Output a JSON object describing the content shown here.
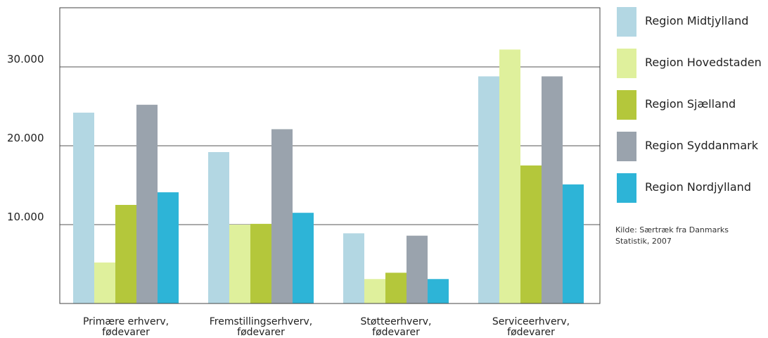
{
  "chart_data": {
    "type": "bar",
    "categories": [
      [
        "Primære erhverv,",
        "fødevarer"
      ],
      [
        "Fremstillingserhverv,",
        "fødevarer"
      ],
      [
        "Støtteerhverv,",
        "fødevarer"
      ],
      [
        "Serviceerhverv,",
        "fødevarer"
      ]
    ],
    "series": [
      {
        "name": "Region Midtjylland",
        "color": "#b3d7e3",
        "values": [
          24200,
          19200,
          8900,
          28800
        ]
      },
      {
        "name": "Region Hovedstaden",
        "color": "#dff09c",
        "values": [
          5200,
          10000,
          3100,
          32200
        ]
      },
      {
        "name": "Region Sjælland",
        "color": "#b4c73b",
        "values": [
          12500,
          10100,
          3900,
          17500
        ]
      },
      {
        "name": "Region Syddanmark",
        "color": "#9aa3ad",
        "values": [
          25200,
          22100,
          8600,
          28800
        ]
      },
      {
        "name": "Region Nordjylland",
        "color": "#2db4d7",
        "values": [
          14100,
          11500,
          3100,
          15100
        ]
      }
    ],
    "yticks": [
      "10.000",
      "20.000",
      "30.000"
    ],
    "ytick_values": [
      10000,
      20000,
      30000
    ],
    "ylim": [
      0,
      37500
    ],
    "grid": true,
    "legend_position": "right",
    "title": "",
    "xlabel": "",
    "ylabel": ""
  },
  "source_note": [
    "Kilde: Særtræk fra Danmarks",
    "Statistik, 2007"
  ]
}
